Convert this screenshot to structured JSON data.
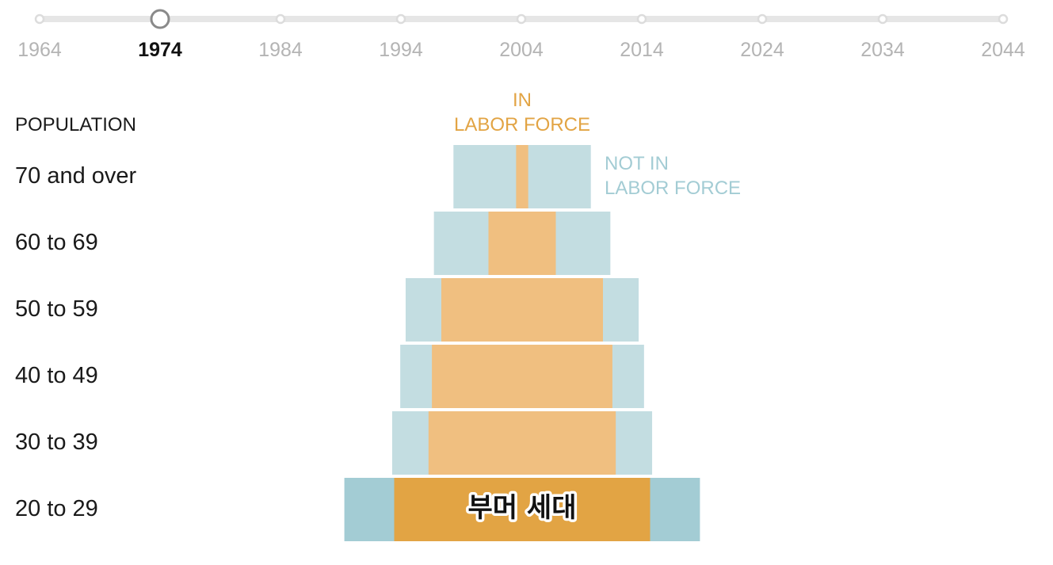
{
  "timeline": {
    "years": [
      "1964",
      "1974",
      "1984",
      "1994",
      "2004",
      "2014",
      "2024",
      "2034",
      "2044"
    ],
    "selected": "1974"
  },
  "chart_data": {
    "type": "bar",
    "title": "",
    "header": "POPULATION",
    "categories": [
      "70 and over",
      "60 to 69",
      "50 to 59",
      "40 to 49",
      "30 to 39",
      "20 to 29"
    ],
    "series": [
      {
        "name": "IN LABOR FORCE",
        "values": [
          0.9,
          5.0,
          12.0,
          13.4,
          13.9,
          19.0
        ]
      },
      {
        "name": "NOT IN LABOR FORCE",
        "values": [
          9.3,
          8.1,
          5.3,
          4.7,
          5.4,
          7.4
        ]
      }
    ],
    "legend": {
      "in_line1": "IN",
      "in_line2": "LABOR FORCE",
      "not_line1": "NOT IN",
      "not_line2": "LABOR FORCE"
    },
    "highlight": {
      "category": "20 to 29",
      "label": "부머 세대"
    },
    "colors": {
      "in": "#f0bf80",
      "not": "#c3dde1",
      "in_highlight": "#e2a444",
      "not_highlight": "#a3ccd4",
      "in_text": "#e2a444",
      "not_text": "#a3ccd4"
    }
  }
}
